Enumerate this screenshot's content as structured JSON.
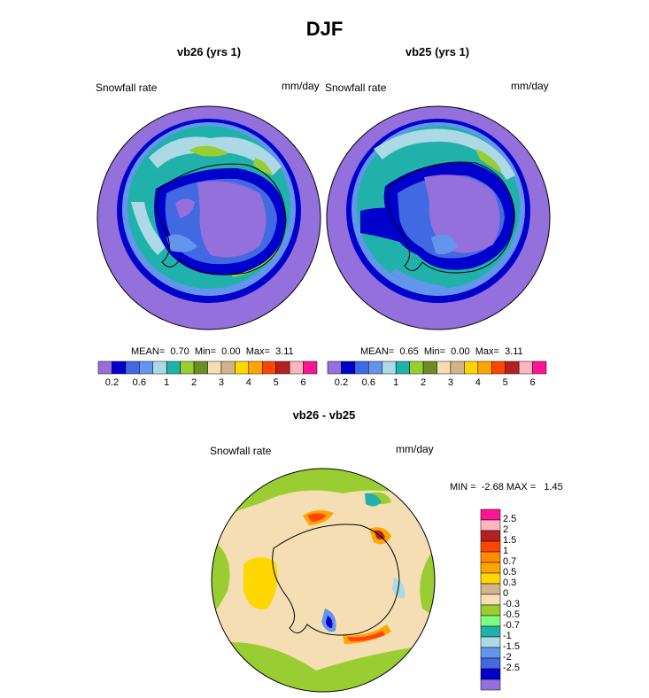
{
  "title": "DJF",
  "panels": [
    {
      "title": "vb26 (yrs 1)",
      "variable": "Snowfall rate",
      "units": "mm/day",
      "stats": {
        "mean_label": "MEAN=",
        "mean": "0.70",
        "min_label": "Min=",
        "min": "0.00",
        "max_label": "Max=",
        "max": "3.11"
      }
    },
    {
      "title": "vb25 (yrs 1)",
      "variable": "Snowfall rate",
      "units": "mm/day",
      "stats": {
        "mean_label": "MEAN=",
        "mean": "0.65",
        "min_label": "Min=",
        "min": "0.00",
        "max_label": "Max=",
        "max": "3.11"
      }
    }
  ],
  "shared_colorbar": {
    "colors": [
      "#9370db",
      "#0000cd",
      "#4169e1",
      "#6495ed",
      "#add8e6",
      "#20b2aa",
      "#9acd32",
      "#6b8e23",
      "#f5deb3",
      "#d2b48c",
      "#ffd700",
      "#ffa500",
      "#ff4500",
      "#b22222",
      "#ffb6c1",
      "#ff1493"
    ],
    "tick_labels": [
      "0.2",
      "0.6",
      "1",
      "2",
      "3",
      "4",
      "5",
      "6"
    ]
  },
  "diff": {
    "title": "vb26 - vb25",
    "variable": "Snowfall rate",
    "units": "mm/day",
    "minmax_text": "MIN =  -2.68 MAX =   1.45",
    "colorbar": {
      "colors_top_to_bottom": [
        "#ff1493",
        "#ffb6c1",
        "#b22222",
        "#ff4500",
        "#ff8c00",
        "#ffa500",
        "#ffd700",
        "#d2b48c",
        "#f5deb3",
        "#9acd32",
        "#7fff7f",
        "#20b2aa",
        "#add8e6",
        "#6495ed",
        "#4169e1",
        "#0000cd",
        "#9370db"
      ],
      "tick_labels_top_to_bottom": [
        "2.5",
        "2",
        "1.5",
        "1",
        "0.7",
        "0.5",
        "0.3",
        "0",
        "-0.3",
        "-0.5",
        "-0.7",
        "-1",
        "-1.5",
        "-2",
        "-2.5"
      ]
    }
  },
  "colors": {
    "ocean_low": "#9370db",
    "ice_edge": "#0000cd",
    "mid_band": "#20b2aa",
    "light_band": "#add8e6",
    "diff_bg": "#f5deb3",
    "diff_green": "#9acd32"
  }
}
